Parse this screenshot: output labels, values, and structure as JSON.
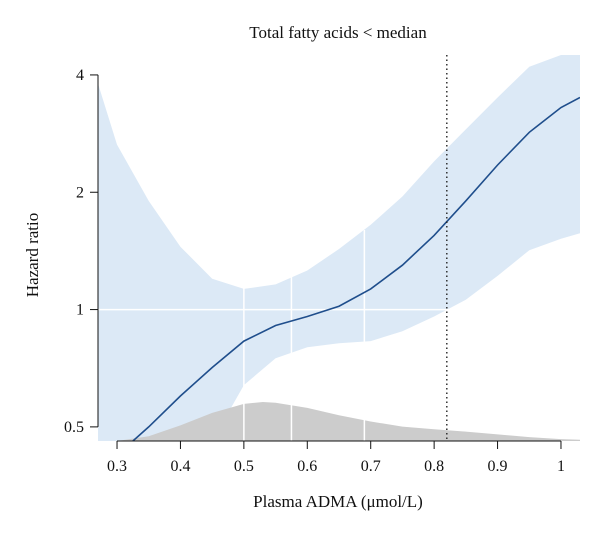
{
  "chart_data": {
    "type": "line",
    "title": "Total fatty acids < median",
    "xlabel": "Plasma ADMA (μmol/L)",
    "ylabel": "Hazard ratio",
    "xlim": [
      0.27,
      1.03
    ],
    "ylim": [
      0.46,
      4.5
    ],
    "y_scale": "log",
    "x_ticks": [
      0.3,
      0.4,
      0.5,
      0.6,
      0.7,
      0.8,
      0.9,
      1.0
    ],
    "x_tick_labels": [
      "0.3",
      "0.4",
      "0.5",
      "0.6",
      "0.7",
      "0.8",
      "0.9",
      "1"
    ],
    "y_ticks": [
      0.5,
      1,
      2,
      4
    ],
    "y_tick_labels": [
      "0.5",
      "1",
      "2",
      "4"
    ],
    "reference_line_y": 1,
    "vertical_gridlines_x": [
      0.5,
      0.575,
      0.69
    ],
    "dotted_line_x": 0.82,
    "series": [
      {
        "role": "estimate",
        "color": "#1f4e8c",
        "x": [
          0.325,
          0.35,
          0.4,
          0.45,
          0.5,
          0.55,
          0.6,
          0.65,
          0.7,
          0.75,
          0.8,
          0.85,
          0.9,
          0.95,
          1.0,
          1.03
        ],
        "y": [
          0.46,
          0.5,
          0.6,
          0.71,
          0.83,
          0.91,
          0.96,
          1.02,
          1.13,
          1.3,
          1.55,
          1.9,
          2.35,
          2.85,
          3.3,
          3.5
        ]
      },
      {
        "role": "confidence_band",
        "color": "#dce9f6",
        "x": [
          0.27,
          0.3,
          0.35,
          0.4,
          0.45,
          0.5,
          0.55,
          0.6,
          0.65,
          0.7,
          0.75,
          0.8,
          0.85,
          0.9,
          0.95,
          1.0,
          1.03
        ],
        "upper": [
          3.8,
          2.65,
          1.9,
          1.45,
          1.2,
          1.13,
          1.16,
          1.26,
          1.43,
          1.65,
          1.95,
          2.4,
          2.9,
          3.5,
          4.2,
          4.5,
          4.5
        ],
        "lower": [
          0.46,
          0.46,
          0.46,
          0.46,
          0.46,
          0.64,
          0.75,
          0.8,
          0.82,
          0.83,
          0.88,
          0.96,
          1.06,
          1.22,
          1.42,
          1.52,
          1.57
        ]
      }
    ],
    "density": {
      "color": "#cccccc",
      "x": [
        0.3,
        0.35,
        0.4,
        0.45,
        0.5,
        0.53,
        0.55,
        0.6,
        0.65,
        0.7,
        0.75,
        0.8,
        0.85,
        0.9,
        0.95,
        1.0,
        1.03
      ],
      "height": [
        0.0,
        0.12,
        0.4,
        0.72,
        0.95,
        1.0,
        0.98,
        0.85,
        0.66,
        0.5,
        0.37,
        0.3,
        0.24,
        0.17,
        0.1,
        0.05,
        0.03
      ]
    }
  }
}
